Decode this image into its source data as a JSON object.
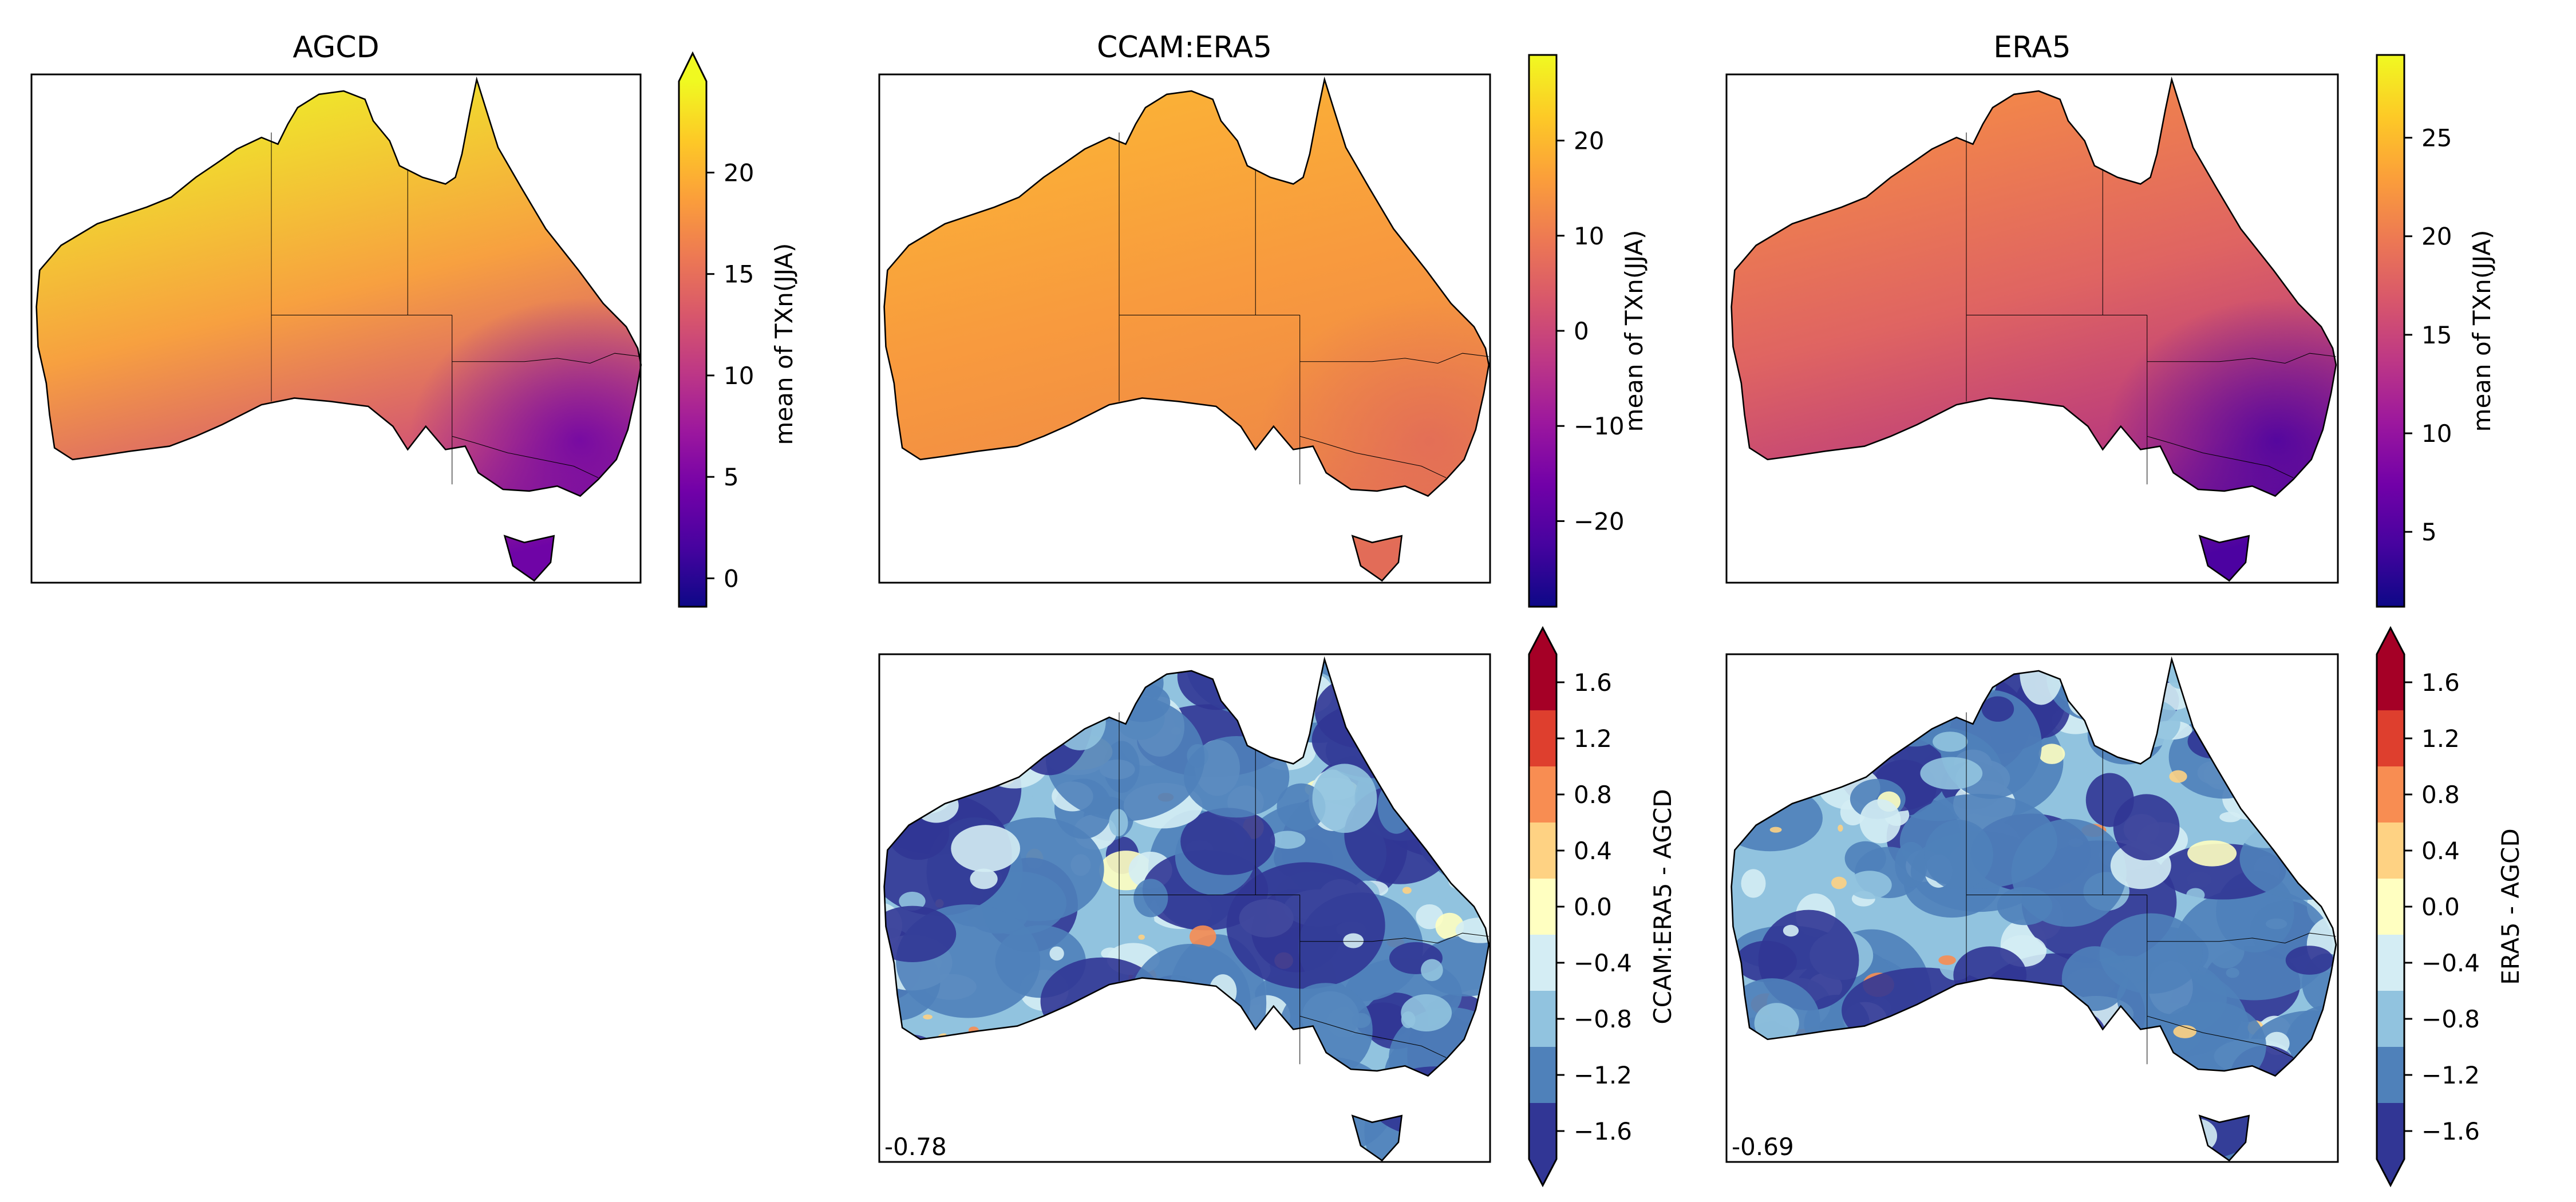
{
  "chart_data": [
    {
      "type": "heatmap",
      "title": "AGCD",
      "colormap": "plasma",
      "colorbar": {
        "label": "mean of TXn(JJA)",
        "ticks": [
          0,
          5,
          10,
          15,
          20
        ],
        "tick_labels": [
          "0",
          "5",
          "10",
          "15",
          "20"
        ],
        "range": [
          -1.4,
          24.5
        ],
        "extend": "max"
      },
      "fill_colors": {
        "north": "#eef227",
        "center": "#f7a040",
        "south": "#cf4f78",
        "southeast": "#6f04a6"
      }
    },
    {
      "type": "heatmap",
      "title": "CCAM:ERA5",
      "colormap": "plasma",
      "colorbar": {
        "label": "mean of TXn(JJA)",
        "ticks": [
          -20,
          -10,
          0,
          10,
          20
        ],
        "tick_labels": [
          "−20",
          "−10",
          "0",
          "10",
          "20"
        ],
        "range": [
          -29,
          29
        ],
        "extend": "neither"
      },
      "fill_colors": {
        "north": "#fbb535",
        "center": "#f89a3e",
        "south": "#ef8a45",
        "southeast": "#e26c58"
      }
    },
    {
      "type": "heatmap",
      "title": "ERA5",
      "colormap": "plasma",
      "colorbar": {
        "label": "mean of TXn(JJA)",
        "ticks": [
          5,
          10,
          15,
          20,
          25
        ],
        "tick_labels": [
          "5",
          "10",
          "15",
          "20",
          "25"
        ],
        "range": [
          1.2,
          29.2
        ],
        "extend": "neither"
      },
      "fill_colors": {
        "north": "#f68d45",
        "center": "#df6462",
        "south": "#b6367f",
        "southeast": "#4c02a1"
      }
    },
    {
      "type": "heatmap",
      "title": "",
      "colormap": "RdYlBu_r",
      "annotation": "-0.78",
      "colorbar": {
        "label": "CCAM:ERA5 - AGCD",
        "ticks": [
          -1.6,
          -1.2,
          -0.8,
          -0.4,
          0.0,
          0.4,
          0.8,
          1.2,
          1.6
        ],
        "tick_labels": [
          "−1.6",
          "−1.2",
          "−0.8",
          "−0.4",
          "0.0",
          "0.4",
          "0.8",
          "1.2",
          "1.6"
        ],
        "range": [
          -1.8,
          1.8
        ],
        "extend": "both"
      },
      "levels": [
        -1.8,
        -1.4,
        -1.0,
        -0.6,
        -0.2,
        0.2,
        0.6,
        1.0,
        1.4,
        1.8
      ],
      "level_colors": [
        "#313695",
        "#4f81ba",
        "#91c3df",
        "#d4edf4",
        "#ffffc1",
        "#fed283",
        "#f88d52",
        "#de3f2e",
        "#a50026"
      ]
    },
    {
      "type": "heatmap",
      "title": "",
      "colormap": "RdYlBu_r",
      "annotation": "-0.69",
      "colorbar": {
        "label": "ERA5 - AGCD",
        "ticks": [
          -1.6,
          -1.2,
          -0.8,
          -0.4,
          0.0,
          0.4,
          0.8,
          1.2,
          1.6
        ],
        "tick_labels": [
          "−1.6",
          "−1.2",
          "−0.8",
          "−0.4",
          "0.0",
          "0.4",
          "0.8",
          "1.2",
          "1.6"
        ],
        "range": [
          -1.8,
          1.8
        ],
        "extend": "both"
      },
      "levels": [
        -1.8,
        -1.4,
        -1.0,
        -0.6,
        -0.2,
        0.2,
        0.6,
        1.0,
        1.4,
        1.8
      ],
      "level_colors": [
        "#313695",
        "#4f81ba",
        "#91c3df",
        "#d4edf4",
        "#ffffc1",
        "#fed283",
        "#f88d52",
        "#de3f2e",
        "#a50026"
      ]
    }
  ]
}
